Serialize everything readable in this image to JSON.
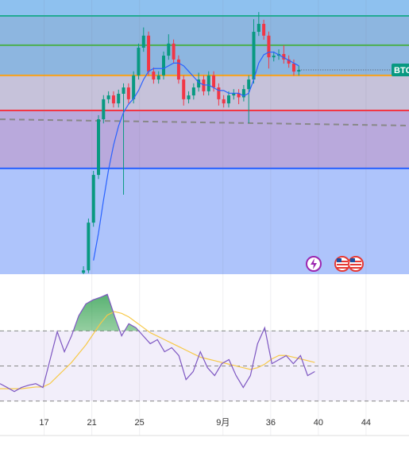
{
  "chart_data": [
    {
      "type": "candlestick",
      "x": [
        20.3,
        20.72,
        21.14,
        21.56,
        21.98,
        22.4,
        22.82,
        23.24,
        23.66,
        24.08,
        24.5,
        24.92,
        25.34,
        25.76,
        26.18,
        26.6,
        27.02,
        27.44,
        27.86,
        28.28,
        28.7,
        29.12,
        29.54,
        29.96,
        30.38,
        30.8,
        31.22,
        31.64,
        32.06,
        32.48,
        32.9,
        33.32,
        33.74,
        34.16,
        34.58,
        35.0,
        35.42,
        35.84,
        36.26,
        36.68,
        37.1,
        37.52,
        37.94,
        38.36
      ],
      "open": [
        0.5,
        1.4,
        18.8,
        36.2,
        56.5,
        63.8,
        65.2,
        62.3,
        65.8,
        68.1,
        63.8,
        72.5,
        82.6,
        87.0,
        73.9,
        71.0,
        72.5,
        79.7,
        84.1,
        78.3,
        71.0,
        63.8,
        65.2,
        68.1,
        71.0,
        66.7,
        72.5,
        68.1,
        63.8,
        62.3,
        65.2,
        66.0,
        64.5,
        67.5,
        71.0,
        88.4,
        91.3,
        87.0,
        79.1,
        79.7,
        80.3,
        78.3,
        76.8,
        73.9
      ],
      "high": [
        2.9,
        20.3,
        37.7,
        58.0,
        65.3,
        66.7,
        66.7,
        67.3,
        69.6,
        69.6,
        74.0,
        84.1,
        90.0,
        88.5,
        75.4,
        74.0,
        81.2,
        87.5,
        85.6,
        79.8,
        72.5,
        66.7,
        69.6,
        73.5,
        72.5,
        74.0,
        74.0,
        69.6,
        65.3,
        66.7,
        67.5,
        67.5,
        69.0,
        72.5,
        93.0,
        95.6,
        92.8,
        88.5,
        81.2,
        82.0,
        83.5,
        79.8,
        78.3,
        76.0
      ],
      "low": [
        -1.0,
        0.4,
        17.3,
        34.7,
        55.0,
        62.3,
        60.8,
        60.8,
        29.0,
        62.3,
        62.3,
        71.0,
        81.1,
        72.4,
        69.5,
        69.5,
        71.0,
        78.2,
        76.8,
        69.5,
        61.5,
        62.3,
        63.7,
        66.6,
        65.2,
        65.2,
        66.6,
        61.5,
        60.8,
        60.8,
        63.7,
        62.0,
        63.0,
        55.1,
        69.5,
        86.9,
        85.5,
        75.0,
        77.6,
        78.2,
        76.8,
        75.3,
        72.4,
        72.4
      ],
      "close": [
        1.4,
        18.8,
        36.2,
        56.5,
        63.8,
        65.2,
        62.3,
        65.8,
        68.1,
        63.8,
        72.5,
        82.6,
        87.0,
        73.9,
        71.0,
        72.5,
        79.7,
        84.1,
        78.3,
        71.0,
        63.8,
        65.2,
        68.1,
        71.0,
        66.7,
        72.5,
        68.1,
        63.8,
        62.3,
        65.2,
        66.0,
        64.5,
        67.5,
        71.0,
        88.4,
        91.3,
        87.0,
        79.1,
        79.7,
        80.3,
        78.3,
        76.8,
        73.9,
        74.5
      ],
      "up_color": "#089981",
      "down_color": "#f23645",
      "ma": {
        "color": "#2962ff",
        "values": [
          null,
          null,
          5,
          15,
          27,
          38,
          47,
          54,
          59,
          62,
          64,
          67,
          71,
          74,
          75,
          75,
          75,
          76,
          77,
          77,
          76,
          74,
          72,
          70,
          69,
          69,
          68,
          67,
          67,
          66,
          66,
          66,
          65,
          66,
          71,
          77,
          80,
          81,
          81,
          80,
          79,
          78,
          77,
          76
        ]
      },
      "levels": [
        {
          "value": 94.2,
          "color": "#22ab94"
        },
        {
          "value": 83.5,
          "color": "#4caf50"
        },
        {
          "value": 72.5,
          "color": "#f7a21b"
        },
        {
          "value": 59.7,
          "color": "#f23645"
        },
        {
          "value": 38.6,
          "color": "#2962ff"
        }
      ],
      "trendline": {
        "x": [
          13.3,
          47.6
        ],
        "y": [
          56.5,
          54.2
        ],
        "color": "#888888"
      },
      "symbol": "BTC",
      "xlim": [
        13.3,
        47.6
      ],
      "ylim": [
        0,
        100
      ]
    },
    {
      "type": "line",
      "x": [
        13.3,
        13.9,
        14.5,
        15.1,
        15.7,
        16.3,
        16.9,
        17.5,
        18.1,
        18.7,
        19.3,
        19.9,
        20.5,
        21.1,
        21.7,
        22.3,
        22.9,
        23.5,
        24.1,
        24.7,
        25.3,
        25.9,
        26.5,
        27.1,
        27.7,
        28.3,
        28.9,
        29.5,
        30.1,
        30.7,
        31.3,
        31.9,
        32.5,
        33.1,
        33.7,
        34.3,
        34.9,
        35.5,
        36.1,
        36.7,
        37.3,
        37.9,
        38.5,
        39.1,
        39.7
      ],
      "values": [
        39.9,
        37.7,
        35.4,
        37.7,
        39.0,
        39.9,
        37.7,
        53.6,
        69.5,
        58.1,
        67.2,
        78.6,
        85.4,
        87.7,
        89.1,
        90.9,
        78.6,
        67.2,
        74.1,
        71.8,
        67.2,
        62.7,
        65.0,
        58.1,
        60.4,
        55.9,
        42.2,
        46.8,
        58.1,
        49.0,
        44.5,
        51.3,
        53.6,
        44.5,
        37.7,
        44.5,
        62.7,
        71.8,
        51.3,
        53.6,
        55.9,
        51.3,
        55.9,
        44.5,
        46.8
      ],
      "color": "#7e57c2",
      "ma": {
        "color": "#f7c948",
        "values": [
          37,
          37,
          37,
          37,
          37.5,
          38,
          38,
          40,
          44,
          48,
          52,
          57,
          62,
          68,
          74,
          79,
          81,
          80,
          78,
          75,
          72,
          69,
          67,
          65,
          63,
          61,
          59,
          57,
          55,
          54,
          53,
          52,
          51,
          50,
          49,
          48,
          49,
          51,
          54,
          56,
          56,
          55,
          54,
          53,
          52
        ]
      },
      "levels": [
        70,
        50,
        30
      ],
      "xlim": [
        13.3,
        47.6
      ],
      "ylim": [
        23,
        101
      ],
      "xticks": [
        17,
        21,
        25,
        {
          "value": 32,
          "label": "9月"
        },
        36,
        40,
        44
      ]
    }
  ]
}
